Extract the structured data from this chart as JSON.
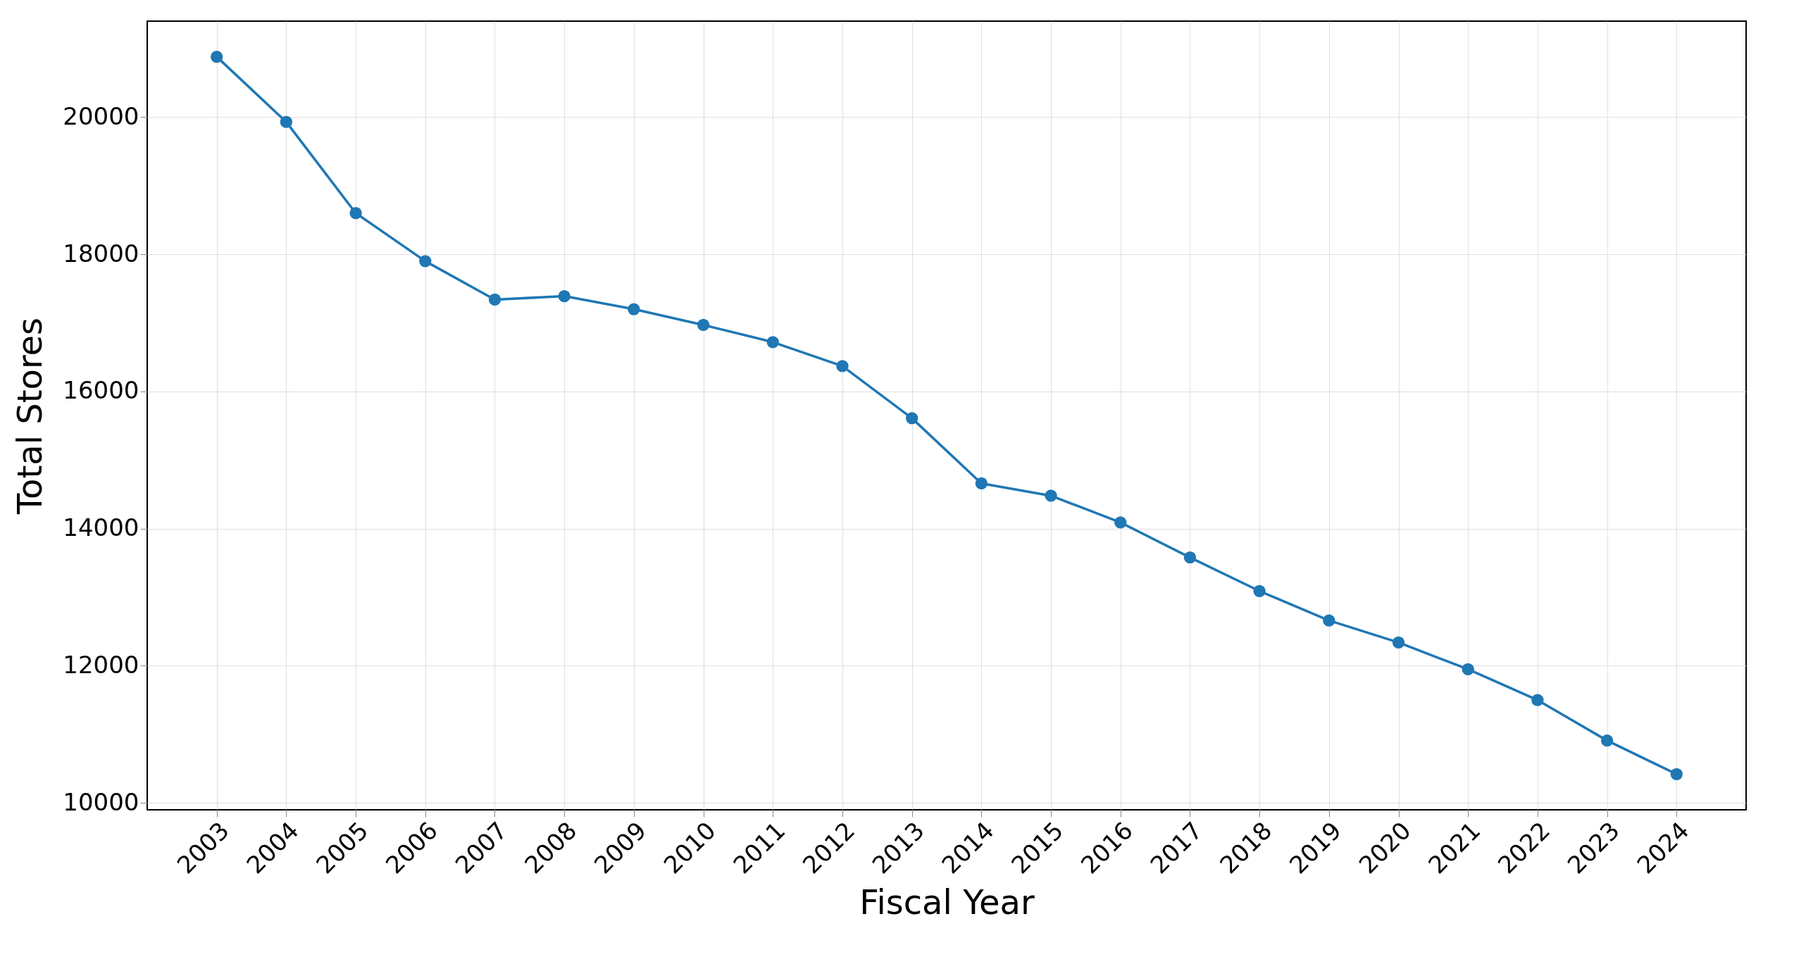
{
  "chart_data": {
    "type": "line",
    "xlabel": "Fiscal Year",
    "ylabel": "Total Stores",
    "categories": [
      "2003",
      "2004",
      "2005",
      "2006",
      "2007",
      "2008",
      "2009",
      "2010",
      "2011",
      "2012",
      "2013",
      "2014",
      "2015",
      "2016",
      "2017",
      "2018",
      "2019",
      "2020",
      "2021",
      "2022",
      "2023",
      "2024"
    ],
    "series": [
      {
        "color": "#1f77b4",
        "values": [
          20880,
          19930,
          18600,
          17900,
          17340,
          17390,
          17200,
          16970,
          16720,
          16370,
          15610,
          14660,
          14480,
          14090,
          13580,
          13090,
          12660,
          12340,
          11950,
          11500,
          10910,
          10420
        ]
      }
    ],
    "ylim": [
      9900,
      21400
    ],
    "yticks": [
      10000,
      12000,
      14000,
      16000,
      18000,
      20000
    ],
    "grid": true,
    "marker": "circle",
    "line_style": "solid",
    "legend": false
  }
}
